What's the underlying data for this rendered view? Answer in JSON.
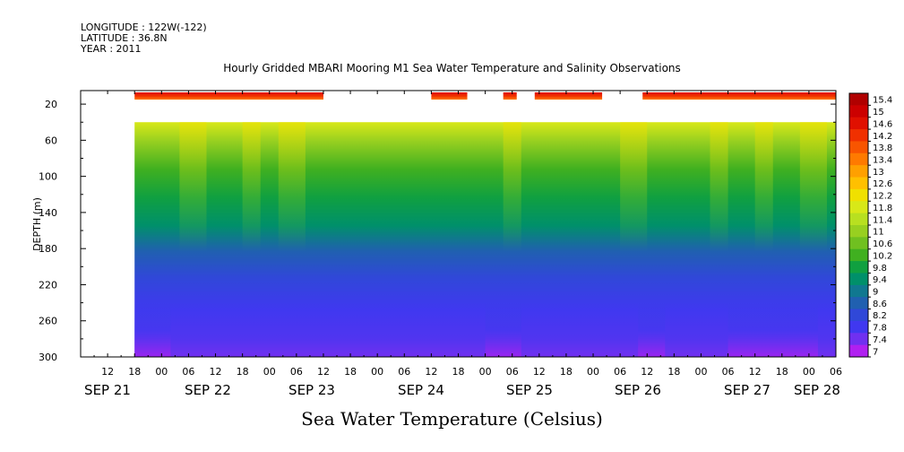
{
  "header": {
    "longitude": "LONGITUDE : 122W(-122)",
    "latitude": "LATITUDE : 36.8N",
    "year": "YEAR : 2011"
  },
  "chart_data": {
    "type": "heatmap",
    "title": "Hourly Gridded MBARI Mooring M1 Sea Water Temperature and Salinity Observations",
    "xlabel": "Sea Water Temperature (Celsius)",
    "ylabel": "DEPTH (m)",
    "x_unit": "hours since SEP 21 00",
    "x_range": [
      6,
      174
    ],
    "x_tick_labels": [
      "12",
      "18",
      "00",
      "06",
      "12",
      "18",
      "00",
      "06",
      "12",
      "18",
      "00",
      "06",
      "12",
      "18",
      "00",
      "06",
      "12",
      "18",
      "00",
      "06",
      "12",
      "18",
      "00",
      "06",
      "12",
      "18",
      "00",
      "06"
    ],
    "date_labels": [
      "SEP 21",
      "SEP 22",
      "SEP 23",
      "SEP 24",
      "SEP 25",
      "SEP 26",
      "SEP 27",
      "SEP 28"
    ],
    "y_range": [
      5,
      300
    ],
    "y_ticks": [
      20,
      60,
      100,
      140,
      180,
      220,
      260,
      300
    ],
    "y_inverted": true,
    "colorbar": {
      "levels": [
        "15.4",
        "15",
        "14.6",
        "14.2",
        "13.8",
        "13.4",
        "13",
        "12.6",
        "12.2",
        "11.8",
        "11.4",
        "11",
        "10.6",
        "10.2",
        "9.8",
        "9.4",
        "9",
        "8.6",
        "8.2",
        "7.8",
        "7.4",
        "7"
      ],
      "colors": [
        "#b00000",
        "#cc0000",
        "#e01000",
        "#f03000",
        "#f85500",
        "#ff7a00",
        "#ffa000",
        "#ffc000",
        "#f0e000",
        "#d8e818",
        "#b8e020",
        "#98d020",
        "#70c020",
        "#40b020",
        "#10a040",
        "#00906a",
        "#107890",
        "#2060b0",
        "#3048d8",
        "#4038f0",
        "#7030f0",
        "#b020f0"
      ]
    },
    "surface_segments": [
      {
        "start": 18,
        "end": 60
      },
      {
        "start": 84,
        "end": 92
      },
      {
        "start": 100,
        "end": 103
      },
      {
        "start": 107,
        "end": 122
      },
      {
        "start": 131,
        "end": 174
      }
    ],
    "profile_top_depth": 40,
    "profile_start": 18,
    "surface_temp_range": [
      13.8,
      15.4
    ]
  }
}
